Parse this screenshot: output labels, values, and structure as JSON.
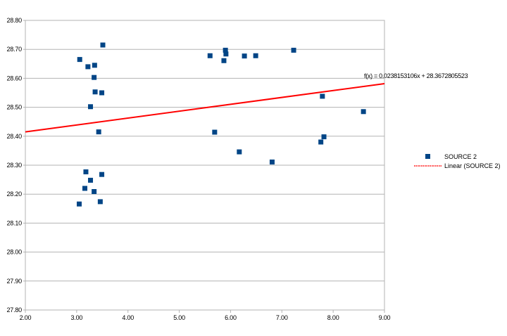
{
  "chart_data": {
    "type": "scatter",
    "title": "",
    "xlabel": "",
    "ylabel": "",
    "xlim": [
      2.0,
      9.0
    ],
    "ylim": [
      27.8,
      28.8
    ],
    "x_ticks": [
      2.0,
      3.0,
      4.0,
      5.0,
      6.0,
      7.0,
      8.0,
      9.0
    ],
    "y_ticks": [
      27.8,
      27.9,
      28.0,
      28.1,
      28.2,
      28.3,
      28.4,
      28.5,
      28.6,
      28.7,
      28.8
    ],
    "x_tick_labels": [
      "2.00",
      "3.00",
      "4.00",
      "5.00",
      "6.00",
      "7.00",
      "8.00",
      "9.00"
    ],
    "y_tick_labels": [
      "27.80",
      "27.90",
      "28.00",
      "28.10",
      "28.20",
      "28.30",
      "28.40",
      "28.50",
      "28.60",
      "28.70",
      "28.80"
    ],
    "grid": {
      "horizontal": true,
      "vertical": false
    },
    "legend": {
      "placement": "right",
      "entries": [
        {
          "label": "SOURCE 2",
          "kind": "marker",
          "color": "#004586"
        },
        {
          "label": "Linear (SOURCE 2)",
          "kind": "line",
          "color": "#ff0000"
        }
      ]
    },
    "series": [
      {
        "name": "SOURCE 2",
        "color": "#004586",
        "marker": "square",
        "points": [
          [
            3.06,
            28.665
          ],
          [
            3.35,
            28.645
          ],
          [
            3.51,
            28.715
          ],
          [
            3.22,
            28.64
          ],
          [
            3.34,
            28.603
          ],
          [
            3.36,
            28.553
          ],
          [
            3.49,
            28.55
          ],
          [
            3.27,
            28.502
          ],
          [
            3.43,
            28.415
          ],
          [
            3.18,
            28.277
          ],
          [
            3.49,
            28.268
          ],
          [
            3.27,
            28.248
          ],
          [
            3.16,
            28.22
          ],
          [
            3.34,
            28.209
          ],
          [
            3.46,
            28.174
          ],
          [
            3.05,
            28.166
          ],
          [
            5.6,
            28.678
          ],
          [
            5.9,
            28.697
          ],
          [
            5.91,
            28.684
          ],
          [
            5.87,
            28.661
          ],
          [
            6.27,
            28.677
          ],
          [
            6.49,
            28.678
          ],
          [
            7.23,
            28.697
          ],
          [
            5.69,
            28.414
          ],
          [
            6.17,
            28.346
          ],
          [
            6.81,
            28.311
          ],
          [
            7.79,
            28.538
          ],
          [
            7.82,
            28.398
          ],
          [
            7.76,
            28.38
          ],
          [
            8.59,
            28.485
          ]
        ]
      }
    ],
    "trendline": {
      "name": "Linear (SOURCE 2)",
      "color": "#ff0000",
      "slope": 0.0238153106,
      "intercept": 28.3672805523,
      "equation_label": "f(x) = 0.0238153106x + 28.3672805523"
    }
  }
}
